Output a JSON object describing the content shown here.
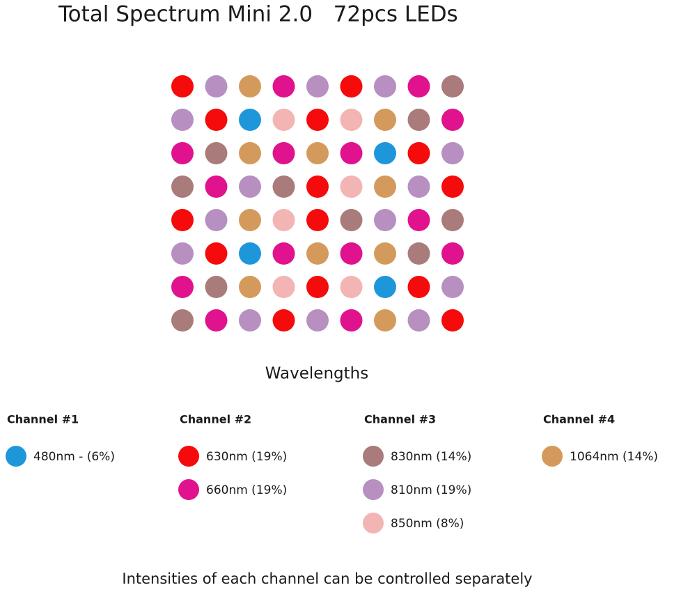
{
  "title": "Total Spectrum Mini 2.0   72pcs LEDs",
  "led_grid": [
    [
      "#f50b0b",
      "#b78fc0",
      "#d49a5c",
      "#e0128e",
      "#b78fc0",
      "#f50b0b",
      "#b78fc0",
      "#e0128e",
      "#a97b7b"
    ],
    [
      "#b78fc0",
      "#f50b0b",
      "#1d97da",
      "#f3b4b4",
      "#f50b0b",
      "#f3b4b4",
      "#d49a5c",
      "#a97b7b",
      "#e0128e"
    ],
    [
      "#e0128e",
      "#a97b7b",
      "#d49a5c",
      "#e0128e",
      "#d49a5c",
      "#e0128e",
      "#1d97da",
      "#f50b0b",
      "#b78fc0"
    ],
    [
      "#a97b7b",
      "#e0128e",
      "#b78fc0",
      "#a97b7b",
      "#f50b0b",
      "#f3b4b4",
      "#d49a5c",
      "#b78fc0",
      "#f50b0b"
    ],
    [
      "#f50b0b",
      "#b78fc0",
      "#d49a5c",
      "#f3b4b4",
      "#f50b0b",
      "#a97b7b",
      "#b78fc0",
      "#e0128e",
      "#a97b7b"
    ],
    [
      "#b78fc0",
      "#f50b0b",
      "#1d97da",
      "#e0128e",
      "#d49a5c",
      "#e0128e",
      "#d49a5c",
      "#a97b7b",
      "#e0128e"
    ],
    [
      "#e0128e",
      "#a97b7b",
      "#d49a5c",
      "#f3b4b4",
      "#f50b0b",
      "#f3b4b4",
      "#1d97da",
      "#f50b0b",
      "#b78fc0"
    ],
    [
      "#a97b7b",
      "#e0128e",
      "#b78fc0",
      "#f50b0b",
      "#b78fc0",
      "#e0128e",
      "#d49a5c",
      "#b78fc0",
      "#f50b0b"
    ]
  ],
  "wavelengths_label": "Wavelengths",
  "channels": [
    {
      "name": "Channel #1",
      "items": [
        {
          "label": "480nm - (6%)",
          "color": "#1d97da"
        }
      ]
    },
    {
      "name": "Channel #2",
      "items": [
        {
          "label": "630nm (19%)",
          "color": "#f50b0b"
        },
        {
          "label": "660nm (19%)",
          "color": "#e0128e"
        }
      ]
    },
    {
      "name": "Channel #3",
      "items": [
        {
          "label": "830nm (14%)",
          "color": "#a97b7b"
        },
        {
          "label": "810nm (19%)",
          "color": "#b78fc0"
        },
        {
          "label": "850nm (8%)",
          "color": "#f3b4b4"
        }
      ]
    },
    {
      "name": "Channel #4",
      "items": [
        {
          "label": "1064nm (14%)",
          "color": "#d49a5c"
        }
      ]
    }
  ],
  "footer": "Intensities of each channel can be controlled separately"
}
